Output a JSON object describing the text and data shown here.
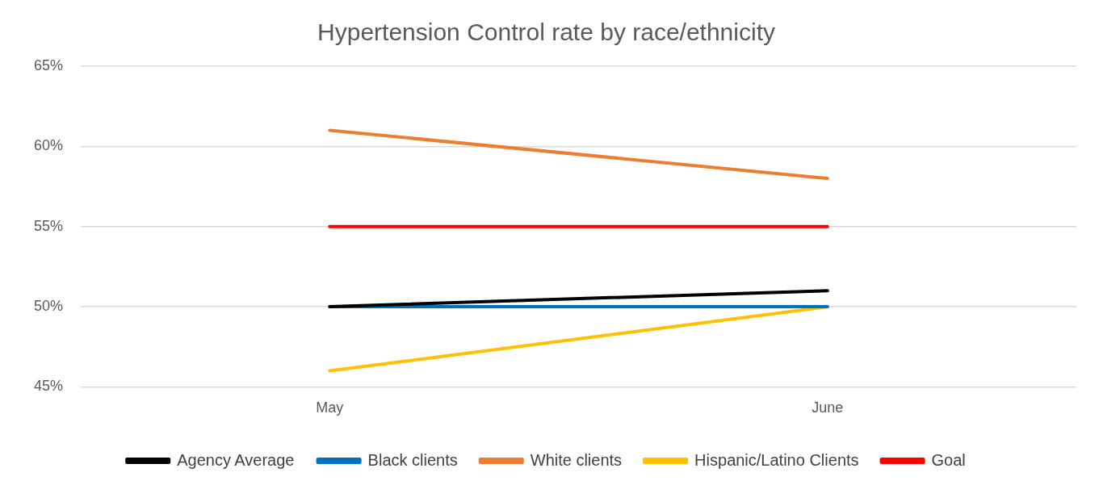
{
  "chart_data": {
    "type": "line",
    "title": "Hypertension Control rate by race/ethnicity",
    "categories": [
      "May",
      "June"
    ],
    "series": [
      {
        "name": "Agency Average",
        "color": "#000000",
        "values": [
          50,
          51
        ]
      },
      {
        "name": "Black clients",
        "color": "#0070c0",
        "values": [
          50,
          50
        ]
      },
      {
        "name": "White clients",
        "color": "#ed7d31",
        "values": [
          61,
          58
        ]
      },
      {
        "name": "Hispanic/Latino Clients",
        "color": "#ffc000",
        "values": [
          46,
          50
        ]
      },
      {
        "name": "Goal",
        "color": "#ff0000",
        "values": [
          55,
          55
        ]
      }
    ],
    "ylim": [
      45,
      65
    ],
    "yticks": [
      {
        "value": 45,
        "label": "45%"
      },
      {
        "value": 50,
        "label": "50%"
      },
      {
        "value": 55,
        "label": "55%"
      },
      {
        "value": 60,
        "label": "60%"
      },
      {
        "value": 65,
        "label": "65%"
      }
    ],
    "grid": "y",
    "legend": "bottom",
    "marker": "none",
    "line_style": "solid"
  }
}
